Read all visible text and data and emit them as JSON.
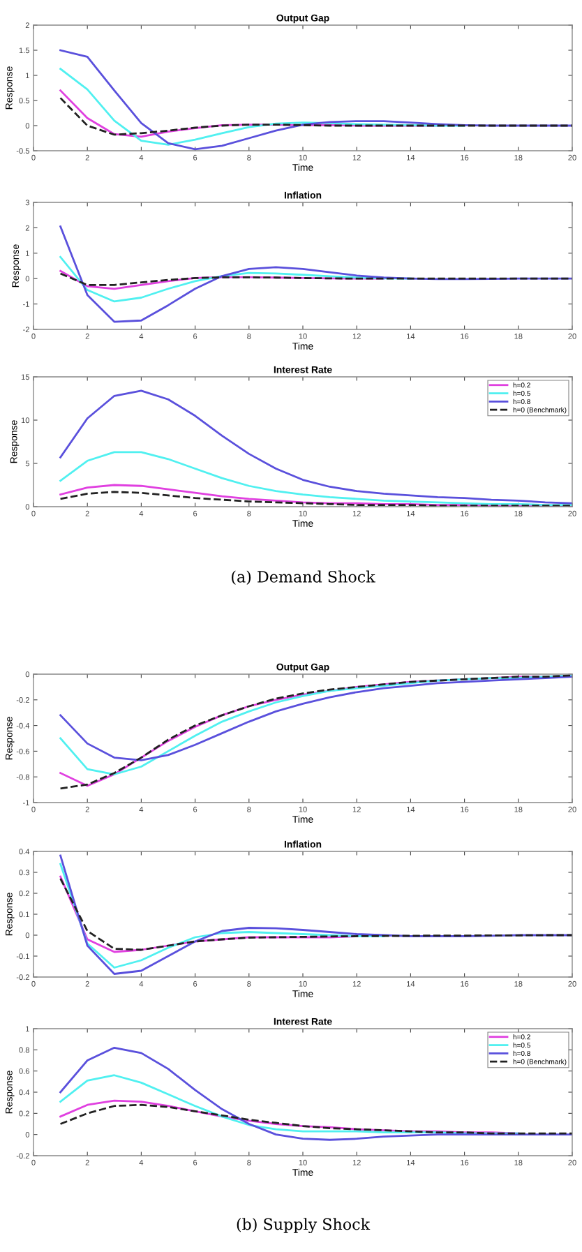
{
  "chart_data": [
    {
      "type": "line",
      "title": "Output Gap",
      "xlabel": "Time",
      "ylabel": "Response",
      "x": [
        1,
        2,
        3,
        4,
        5,
        6,
        7,
        8,
        9,
        10,
        11,
        12,
        13,
        14,
        15,
        16,
        17,
        18,
        19,
        20
      ],
      "xlim": [
        0,
        20
      ],
      "xticks": [
        0,
        2,
        4,
        6,
        8,
        10,
        12,
        14,
        16,
        18,
        20
      ],
      "ylim": [
        -0.5,
        2
      ],
      "yticks": [
        -0.5,
        0,
        0.5,
        1,
        1.5,
        2
      ],
      "grid": false,
      "legend": false,
      "series": [
        {
          "color": "#e040e0",
          "values": [
            0.7,
            0.15,
            -0.17,
            -0.22,
            -0.12,
            -0.05,
            0.01,
            0.02,
            0.02,
            0.01,
            0.01,
            0,
            0,
            0,
            0,
            null,
            null,
            null,
            null,
            null
          ]
        },
        {
          "color": "#50f0f0",
          "values": [
            1.13,
            0.72,
            0.1,
            -0.3,
            -0.38,
            -0.28,
            -0.15,
            -0.03,
            0.04,
            0.06,
            0.05,
            0.03,
            0.02,
            0.01,
            0,
            0,
            null,
            null,
            null,
            null
          ]
        },
        {
          "color": "#5a50dc",
          "values": [
            1.5,
            1.37,
            0.7,
            0.05,
            -0.35,
            -0.47,
            -0.4,
            -0.25,
            -0.1,
            0.02,
            0.07,
            0.09,
            0.09,
            0.06,
            0.03,
            0.01,
            0,
            0,
            0,
            0
          ]
        },
        {
          "color": "#222222",
          "line_style": "dashed",
          "values": [
            0.55,
            0.0,
            -0.18,
            -0.15,
            -0.1,
            -0.04,
            0,
            0.02,
            0.02,
            0.01,
            0,
            0,
            0,
            0,
            0,
            0,
            0,
            0,
            0,
            0
          ]
        }
      ]
    },
    {
      "type": "line",
      "title": "Inflation",
      "xlabel": "Time",
      "ylabel": "Response",
      "x": [
        1,
        2,
        3,
        4,
        5,
        6,
        7,
        8,
        9,
        10,
        11,
        12,
        13,
        14,
        15,
        16,
        17,
        18,
        19,
        20
      ],
      "xlim": [
        0,
        20
      ],
      "xticks": [
        0,
        2,
        4,
        6,
        8,
        10,
        12,
        14,
        16,
        18,
        20
      ],
      "ylim": [
        -2,
        3
      ],
      "yticks": [
        -2,
        -1,
        0,
        1,
        2,
        3
      ],
      "grid": false,
      "legend": false,
      "series": [
        {
          "color": "#e040e0",
          "values": [
            0.3,
            -0.3,
            -0.4,
            -0.25,
            -0.1,
            0.02,
            0.06,
            0.06,
            0.04,
            0.02,
            0.01,
            0,
            0,
            null,
            null,
            null,
            null,
            null,
            null,
            null
          ]
        },
        {
          "color": "#50f0f0",
          "values": [
            0.85,
            -0.45,
            -0.9,
            -0.75,
            -0.4,
            -0.1,
            0.1,
            0.22,
            0.2,
            0.15,
            0.09,
            0.04,
            0.01,
            0,
            null,
            null,
            null,
            null,
            null,
            null
          ]
        },
        {
          "color": "#5a50dc",
          "values": [
            2.05,
            -0.65,
            -1.7,
            -1.65,
            -1.05,
            -0.4,
            0.1,
            0.38,
            0.45,
            0.38,
            0.25,
            0.12,
            0.04,
            0,
            -0.02,
            -0.02,
            -0.01,
            0,
            0,
            0
          ]
        },
        {
          "color": "#222222",
          "line_style": "dashed",
          "values": [
            0.2,
            -0.25,
            -0.25,
            -0.15,
            -0.05,
            0.02,
            0.05,
            0.05,
            0.04,
            0.02,
            0.01,
            0,
            0,
            0,
            0,
            0,
            0,
            0,
            0,
            0
          ]
        }
      ]
    },
    {
      "type": "line",
      "title": "Interest Rate",
      "xlabel": "Time",
      "ylabel": "Response",
      "annotations": [
        "(a) Demand Shock"
      ],
      "x": [
        1,
        2,
        3,
        4,
        5,
        6,
        7,
        8,
        9,
        10,
        11,
        12,
        13,
        14,
        15,
        16,
        17,
        18,
        19,
        20
      ],
      "xlim": [
        0,
        20
      ],
      "xticks": [
        0,
        2,
        4,
        6,
        8,
        10,
        12,
        14,
        16,
        18,
        20
      ],
      "ylim": [
        0,
        15
      ],
      "yticks": [
        0,
        5,
        10,
        15
      ],
      "grid": false,
      "legend": "top right",
      "series": [
        {
          "name": "h=0.2",
          "color": "#e040e0",
          "values": [
            1.4,
            2.2,
            2.5,
            2.4,
            2.0,
            1.6,
            1.2,
            0.9,
            0.7,
            0.5,
            0.4,
            0.4,
            0.3,
            0.3,
            0.2,
            0.2,
            0.1,
            0.1,
            0.1,
            0.1
          ]
        },
        {
          "name": "h=0.5",
          "color": "#50f0f0",
          "values": [
            3,
            5.3,
            6.3,
            6.3,
            5.5,
            4.4,
            3.3,
            2.4,
            1.8,
            1.4,
            1.1,
            0.9,
            0.7,
            0.6,
            0.5,
            0.4,
            0.3,
            0.3,
            0.2,
            0.2
          ]
        },
        {
          "name": "h=0.8",
          "color": "#5a50dc",
          "values": [
            5.7,
            10.2,
            12.8,
            13.4,
            12.4,
            10.5,
            8.2,
            6.1,
            4.4,
            3.1,
            2.3,
            1.8,
            1.5,
            1.3,
            1.1,
            1.0,
            0.8,
            0.7,
            0.5,
            0.4
          ]
        },
        {
          "name": "h=0 (Benchmark)",
          "color": "#222222",
          "line_style": "dashed",
          "values": [
            0.9,
            1.5,
            1.7,
            1.6,
            1.3,
            1.0,
            0.8,
            0.6,
            0.5,
            0.4,
            0.3,
            0.2,
            0.2,
            0.2,
            0.1,
            0.1,
            0.1,
            0.1,
            0.1,
            0.1
          ]
        }
      ]
    },
    {
      "type": "line",
      "title": "Output Gap",
      "xlabel": "Time",
      "ylabel": "Response",
      "x": [
        1,
        2,
        3,
        4,
        5,
        6,
        7,
        8,
        9,
        10,
        11,
        12,
        13,
        14,
        15,
        16,
        17,
        18,
        19,
        20
      ],
      "xlim": [
        0,
        20
      ],
      "xticks": [
        0,
        2,
        4,
        6,
        8,
        10,
        12,
        14,
        16,
        18,
        20
      ],
      "ylim": [
        -1,
        0
      ],
      "yticks": [
        -1,
        -0.8,
        -0.6,
        -0.4,
        -0.2,
        0
      ],
      "grid": false,
      "legend": false,
      "series": [
        {
          "color": "#e040e0",
          "values": [
            -0.77,
            -0.87,
            -0.78,
            -0.65,
            -0.52,
            -0.41,
            -0.32,
            -0.25,
            -0.2,
            -0.16,
            -0.13,
            -0.1,
            -0.08,
            -0.06,
            -0.05,
            -0.04,
            -0.03,
            -0.02,
            -0.02,
            -0.01
          ]
        },
        {
          "color": "#50f0f0",
          "values": [
            -0.5,
            -0.74,
            -0.78,
            -0.72,
            -0.6,
            -0.48,
            -0.37,
            -0.29,
            -0.22,
            -0.17,
            -0.13,
            -0.11,
            -0.09,
            -0.07,
            -0.05,
            -0.04,
            -0.03,
            -0.03,
            -0.02,
            -0.01
          ]
        },
        {
          "color": "#5a50dc",
          "values": [
            -0.32,
            -0.54,
            -0.65,
            -0.67,
            -0.63,
            -0.55,
            -0.46,
            -0.37,
            -0.29,
            -0.23,
            -0.18,
            -0.14,
            -0.11,
            -0.09,
            -0.07,
            -0.06,
            -0.05,
            -0.04,
            -0.03,
            -0.02
          ]
        },
        {
          "color": "#222222",
          "line_style": "dashed",
          "values": [
            -0.89,
            -0.86,
            -0.77,
            -0.65,
            -0.51,
            -0.4,
            -0.32,
            -0.25,
            -0.19,
            -0.15,
            -0.12,
            -0.1,
            -0.08,
            -0.06,
            -0.05,
            -0.04,
            -0.03,
            -0.02,
            -0.02,
            -0.01
          ]
        }
      ]
    },
    {
      "type": "line",
      "title": "Inflation",
      "xlabel": "Time",
      "ylabel": "Response",
      "x": [
        1,
        2,
        3,
        4,
        5,
        6,
        7,
        8,
        9,
        10,
        11,
        12,
        13,
        14,
        15,
        16,
        17,
        18,
        19,
        20
      ],
      "xlim": [
        0,
        20
      ],
      "xticks": [
        0,
        2,
        4,
        6,
        8,
        10,
        12,
        14,
        16,
        18,
        20
      ],
      "ylim": [
        -0.2,
        0.4
      ],
      "yticks": [
        -0.2,
        -0.1,
        0,
        0.1,
        0.2,
        0.3,
        0.4
      ],
      "grid": false,
      "legend": false,
      "series": [
        {
          "color": "#e040e0",
          "values": [
            0.28,
            -0.02,
            -0.08,
            -0.07,
            -0.05,
            -0.03,
            -0.02,
            -0.01,
            -0.01,
            -0.01,
            -0.01,
            -0.005,
            -0.005,
            null,
            null,
            null,
            null,
            null,
            null,
            null
          ]
        },
        {
          "color": "#50f0f0",
          "values": [
            0.34,
            -0.04,
            -0.155,
            -0.12,
            -0.06,
            -0.01,
            0.01,
            0.015,
            0.01,
            0.005,
            0,
            -0.005,
            -0.005,
            null,
            null,
            null,
            null,
            null,
            null,
            null
          ]
        },
        {
          "color": "#5a50dc",
          "values": [
            0.38,
            -0.05,
            -0.185,
            -0.17,
            -0.1,
            -0.03,
            0.02,
            0.035,
            0.033,
            0.025,
            0.015,
            0.005,
            0,
            -0.005,
            -0.005,
            -0.005,
            -0.003,
            0,
            0,
            0
          ]
        },
        {
          "color": "#222222",
          "line_style": "dashed",
          "values": [
            0.27,
            0.02,
            -0.065,
            -0.07,
            -0.05,
            -0.03,
            -0.02,
            -0.012,
            -0.01,
            -0.008,
            -0.006,
            -0.005,
            -0.004,
            -0.003,
            -0.002,
            -0.002,
            -0.001,
            -0.001,
            0,
            0
          ]
        }
      ]
    },
    {
      "type": "line",
      "title": "Interest Rate",
      "xlabel": "Time",
      "ylabel": "Response",
      "annotations": [
        "(b) Supply Shock"
      ],
      "x": [
        1,
        2,
        3,
        4,
        5,
        6,
        7,
        8,
        9,
        10,
        11,
        12,
        13,
        14,
        15,
        16,
        17,
        18,
        19,
        20
      ],
      "xlim": [
        0,
        20
      ],
      "xticks": [
        0,
        2,
        4,
        6,
        8,
        10,
        12,
        14,
        16,
        18,
        20
      ],
      "ylim": [
        -0.2,
        1
      ],
      "yticks": [
        -0.2,
        0,
        0.2,
        0.4,
        0.6,
        0.8,
        1
      ],
      "grid": false,
      "legend": "top right",
      "series": [
        {
          "name": "h=0.2",
          "color": "#e040e0",
          "values": [
            0.17,
            0.28,
            0.32,
            0.31,
            0.27,
            0.22,
            0.17,
            0.13,
            0.1,
            0.08,
            0.07,
            0.05,
            0.04,
            0.03,
            0.03,
            0.02,
            0.02,
            0.01,
            null,
            null
          ]
        },
        {
          "name": "h=0.5",
          "color": "#50f0f0",
          "values": [
            0.31,
            0.51,
            0.56,
            0.49,
            0.38,
            0.27,
            0.17,
            0.09,
            0.05,
            0.03,
            0.03,
            0.03,
            0.02,
            0.02,
            0.02,
            0.01,
            0.01,
            0.01,
            null,
            null
          ]
        },
        {
          "name": "h=0.8",
          "color": "#5a50dc",
          "values": [
            0.4,
            0.7,
            0.82,
            0.77,
            0.62,
            0.42,
            0.24,
            0.1,
            0,
            -0.04,
            -0.05,
            -0.04,
            -0.02,
            -0.01,
            0,
            0,
            0,
            0,
            0,
            0
          ]
        },
        {
          "name": "h=0 (Benchmark)",
          "color": "#222222",
          "line_style": "dashed",
          "values": [
            0.1,
            0.2,
            0.27,
            0.28,
            0.26,
            0.22,
            0.18,
            0.14,
            0.11,
            0.08,
            0.06,
            0.05,
            0.04,
            0.03,
            0.02,
            0.02,
            0.01,
            0.01,
            0.01,
            0.01
          ]
        }
      ]
    }
  ]
}
